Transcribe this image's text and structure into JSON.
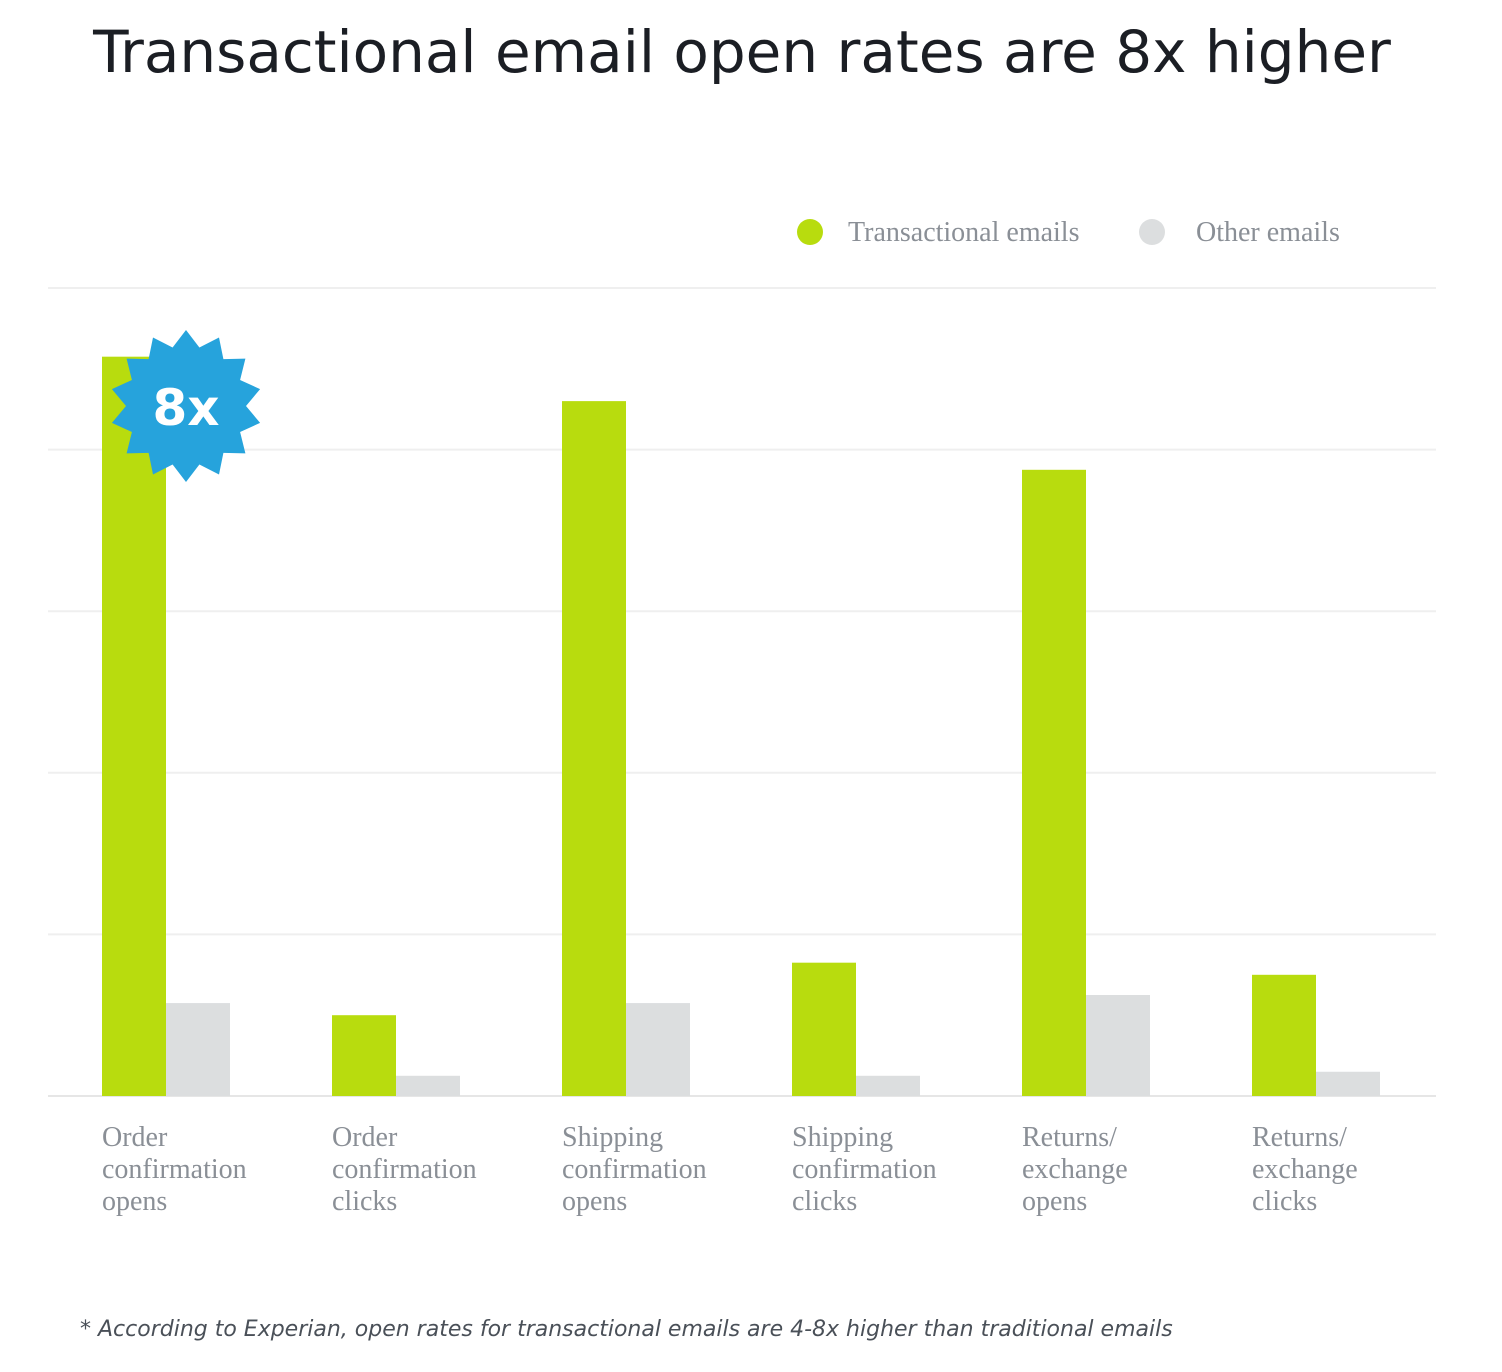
{
  "chart_data": {
    "type": "bar",
    "title": "Transactional email open rates are 8x higher",
    "xlabel": "",
    "ylabel": "",
    "ylim": [
      0,
      100
    ],
    "grid": true,
    "legend": "top-right",
    "categories": [
      [
        "Order",
        "confirmation",
        "opens"
      ],
      [
        "Order",
        "confirmation",
        "clicks"
      ],
      [
        "Shipping",
        "confirmation",
        "opens"
      ],
      [
        "Shipping",
        "confirmation",
        "clicks"
      ],
      [
        "Returns/",
        "exchange",
        "opens"
      ],
      [
        "Returns/",
        "exchange",
        "clicks"
      ]
    ],
    "series": [
      {
        "name": "Transactional emails",
        "color": "#b8dc0e",
        "values": [
          91.5,
          10,
          86,
          16.5,
          77.5,
          15
        ]
      },
      {
        "name": "Other emails",
        "color": "#dcdedf",
        "values": [
          11.5,
          2.5,
          11.5,
          2.5,
          12.5,
          3
        ]
      }
    ],
    "badge": {
      "text": "8x",
      "color": "#26a3dc"
    },
    "footnote": "* According to Experian, open rates for transactional emails are 4-8x higher than traditional emails"
  }
}
